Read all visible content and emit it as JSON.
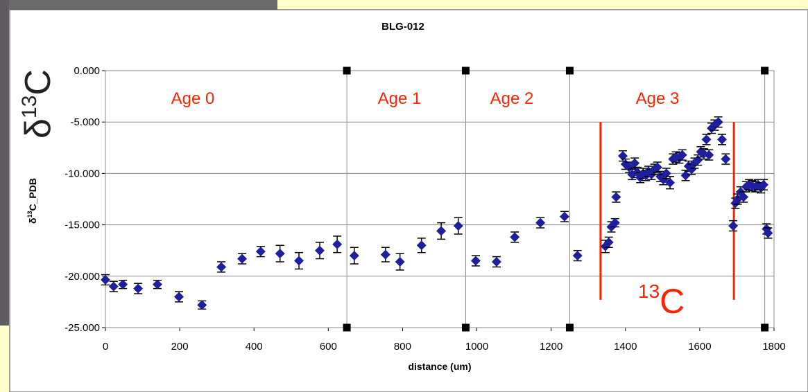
{
  "chart_data": {
    "type": "scatter",
    "title": "BLG-012",
    "xlabel": "distance (um)",
    "ylabel": {
      "main": "δ",
      "sup": "13",
      "tail": "C_PDB"
    },
    "symbol": {
      "main": "δ",
      "sup": "13",
      "tail": "C"
    },
    "isotope_label": {
      "sup": "13",
      "main": "C"
    },
    "annotations": [
      "Age 0",
      "Age 1",
      "Age 2",
      "Age 3"
    ],
    "xlim": [
      0,
      1800
    ],
    "ylim": [
      -25,
      0
    ],
    "xticks": [
      0,
      200,
      400,
      600,
      800,
      1000,
      1200,
      1400,
      1600,
      1800
    ],
    "yticks": [
      {
        "value": 0,
        "label": "0.000"
      },
      {
        "value": -5,
        "label": "-5.000"
      },
      {
        "value": -10,
        "label": "-10.000"
      },
      {
        "value": -15,
        "label": "-15.000"
      },
      {
        "value": -20,
        "label": "-20.000"
      },
      {
        "value": -25,
        "label": "-25.000"
      }
    ],
    "grid": true,
    "color": "#1f1f9e",
    "boundaries": [
      650,
      970,
      1250,
      1775
    ],
    "red_lines": {
      "x": [
        1333,
        1692
      ],
      "y": [
        -5,
        -22.3
      ],
      "color": "#ff2200"
    },
    "x": [
      0,
      22,
      47,
      88,
      140,
      198,
      260,
      312,
      368,
      418,
      470,
      521,
      577,
      624,
      670,
      754,
      793,
      851,
      904,
      950,
      997,
      1053,
      1102,
      1171,
      1236,
      1271,
      1346,
      1355,
      1362,
      1372,
      1375,
      1393,
      1400,
      1410,
      1418,
      1425,
      1432,
      1440,
      1448,
      1455,
      1462,
      1470,
      1478,
      1486,
      1494,
      1502,
      1510,
      1520,
      1528,
      1536,
      1545,
      1553,
      1562,
      1570,
      1578,
      1586,
      1595,
      1603,
      1611,
      1618,
      1625,
      1632,
      1640,
      1650,
      1660,
      1670,
      1690,
      1696,
      1702,
      1710,
      1718,
      1725,
      1733,
      1741,
      1750,
      1757,
      1765,
      1772,
      1780,
      1784
    ],
    "values": [
      -20.35,
      -21.0,
      -20.8,
      -21.2,
      -20.8,
      -22.0,
      -22.8,
      -19.1,
      -18.3,
      -17.6,
      -17.8,
      -18.5,
      -17.5,
      -16.9,
      -18.0,
      -17.9,
      -18.6,
      -17.0,
      -15.6,
      -15.1,
      -18.5,
      -18.6,
      -16.2,
      -14.8,
      -14.2,
      -18.0,
      -17.1,
      -16.7,
      -15.2,
      -14.8,
      -12.3,
      -8.3,
      -9.1,
      -9.4,
      -10.1,
      -9.0,
      -9.9,
      -10.4,
      -10.0,
      -10.2,
      -9.8,
      -10.1,
      -9.6,
      -9.4,
      -10.3,
      -10.6,
      -10.0,
      -10.9,
      -8.6,
      -8.4,
      -8.5,
      -8.2,
      -10.2,
      -9.3,
      -9.6,
      -9.0,
      -8.7,
      -7.9,
      -8.1,
      -6.7,
      -8.2,
      -5.6,
      -5.3,
      -5.0,
      -6.7,
      -8.6,
      -15.1,
      -12.9,
      -12.5,
      -11.8,
      -12.3,
      -11.3,
      -11.1,
      -11.2,
      -11.3,
      -11.1,
      -11.4,
      -11.1,
      -15.4,
      -15.8
    ],
    "errors": [
      0.5,
      0.5,
      0.4,
      0.5,
      0.4,
      0.5,
      0.4,
      0.5,
      0.5,
      0.5,
      0.8,
      0.8,
      0.8,
      0.8,
      0.8,
      0.7,
      0.8,
      0.7,
      0.8,
      0.8,
      0.5,
      0.5,
      0.5,
      0.5,
      0.5,
      0.5,
      0.6,
      0.5,
      0.5,
      0.4,
      0.5,
      0.5,
      0.5,
      0.5,
      0.5,
      0.5,
      0.5,
      0.5,
      0.5,
      0.5,
      0.5,
      0.5,
      0.5,
      0.5,
      0.5,
      0.5,
      0.5,
      0.6,
      0.5,
      0.5,
      0.5,
      0.5,
      0.5,
      0.5,
      0.5,
      0.5,
      0.5,
      0.5,
      0.5,
      0.5,
      0.5,
      0.5,
      0.5,
      0.5,
      0.5,
      0.5,
      0.5,
      0.5,
      0.5,
      0.5,
      0.5,
      0.5,
      0.5,
      0.5,
      0.5,
      0.5,
      0.5,
      0.5,
      0.5,
      0.5
    ]
  }
}
